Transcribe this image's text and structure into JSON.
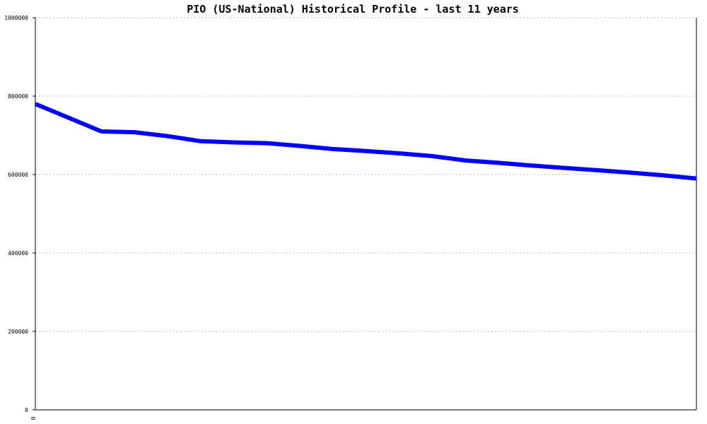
{
  "chart_data": {
    "type": "line",
    "title": "PIO (US-National) Historical Profile - last 11 years",
    "xlabel": "",
    "ylabel": "",
    "x_tick_labels": [
      "0"
    ],
    "y_ticks": [
      "0",
      "200000",
      "400000",
      "600000",
      "800000",
      "1000000"
    ],
    "ylim": [
      0,
      1000000
    ],
    "grid": true,
    "series": [
      {
        "color": "#0000ff",
        "values": [
          780000,
          745000,
          710000,
          708000,
          698000,
          685000,
          682000,
          680000,
          673000,
          665000,
          660000,
          654000,
          647000,
          636000,
          630000,
          623000,
          617000,
          611000,
          605000,
          598000,
          590000
        ]
      }
    ]
  }
}
